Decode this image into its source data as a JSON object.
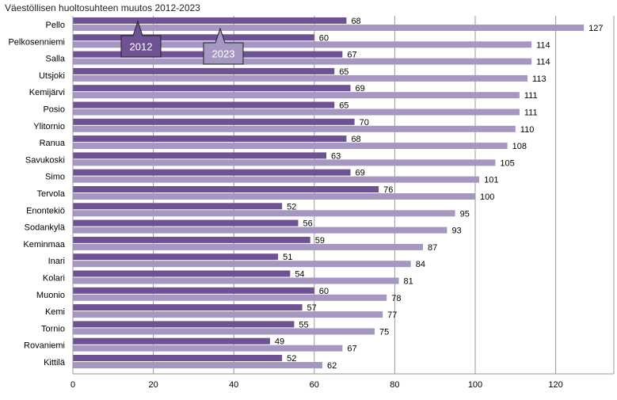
{
  "chart_data": {
    "type": "bar",
    "orientation": "horizontal",
    "title": "Väestöllisen huoltosuhteen muutos 2012-2023",
    "xlabel": "",
    "ylabel": "",
    "xlim": [
      0,
      132
    ],
    "xticks": [
      "0",
      "20",
      "40",
      "60",
      "80",
      "100",
      "120"
    ],
    "grid": true,
    "legend_placement": "top-left, callouts",
    "categories": [
      "Pello",
      "Pelkosenniemi",
      "Salla",
      "Utsjoki",
      "Kemijärvi",
      "Posio",
      "Ylitornio",
      "Ranua",
      "Savukoski",
      "Simo",
      "Tervola",
      "Enontekiö",
      "Sodankylä",
      "Keminmaa",
      "Inari",
      "Kolari",
      "Muonio",
      "Kemi",
      "Tornio",
      "Rovaniemi",
      "Kittilä"
    ],
    "series": [
      {
        "name": "2012",
        "color": "#6f5293",
        "values": [
          68,
          60,
          67,
          65,
          69,
          65,
          70,
          68,
          63,
          69,
          76,
          52,
          56,
          59,
          51,
          54,
          60,
          57,
          55,
          49,
          52
        ]
      },
      {
        "name": "2023",
        "color": "#a597c2",
        "values": [
          127,
          114,
          114,
          113,
          111,
          111,
          110,
          108,
          105,
          101,
          100,
          95,
          93,
          87,
          84,
          81,
          78,
          77,
          75,
          67,
          62
        ]
      }
    ]
  }
}
